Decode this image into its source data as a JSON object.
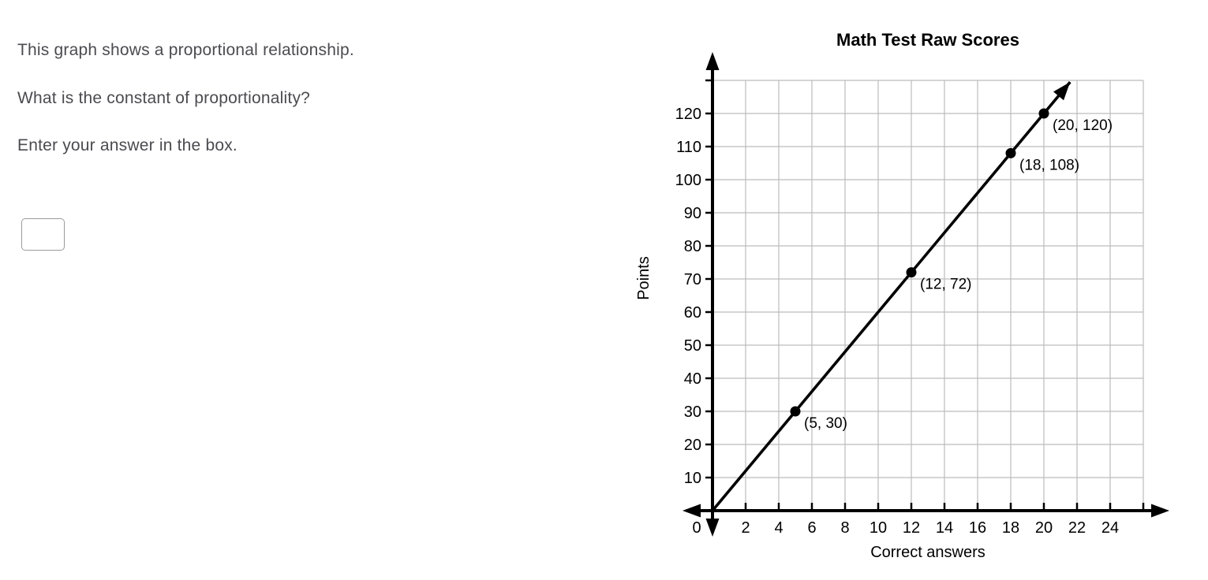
{
  "question": {
    "line1": "This graph shows a proportional relationship.",
    "line2": "What is the constant of proportionality?",
    "line3": "Enter your answer in the box.",
    "answer_value": ""
  },
  "chart_data": {
    "type": "line",
    "title": "Math Test Raw Scores",
    "xlabel": "Correct answers",
    "ylabel": "Points",
    "xlim": [
      0,
      26
    ],
    "ylim": [
      0,
      130
    ],
    "grid": true,
    "legend_position": "none",
    "x_gridlines": [
      2,
      4,
      6,
      8,
      10,
      12,
      14,
      16,
      18,
      20,
      22,
      24,
      26
    ],
    "y_gridlines": [
      10,
      20,
      30,
      40,
      50,
      60,
      70,
      80,
      90,
      100,
      110,
      120,
      130
    ],
    "x_tick_labels": [
      2,
      4,
      6,
      8,
      10,
      12,
      14,
      16,
      18,
      20,
      22,
      24
    ],
    "y_tick_labels": [
      10,
      20,
      30,
      40,
      50,
      60,
      70,
      80,
      90,
      100,
      110,
      120
    ],
    "origin_label": "0",
    "line": {
      "through_origin": true,
      "slope": 6
    },
    "points": [
      {
        "x": 5,
        "y": 30,
        "label": "(5, 30)"
      },
      {
        "x": 12,
        "y": 72,
        "label": "(12, 72)"
      },
      {
        "x": 18,
        "y": 108,
        "label": "(18, 108)"
      },
      {
        "x": 20,
        "y": 120,
        "label": "(20, 120)"
      }
    ],
    "colors": {
      "grid": "#bcbcbc",
      "axis": "#000000",
      "line": "#000000",
      "question_text": "#4b4b50"
    }
  }
}
